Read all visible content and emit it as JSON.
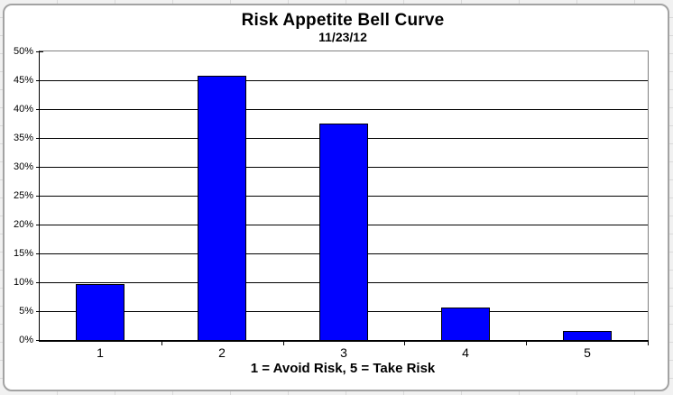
{
  "chart_data": {
    "type": "bar",
    "title": "Risk Appetite Bell Curve",
    "subtitle": "11/23/12",
    "categories": [
      "1",
      "2",
      "3",
      "4",
      "5"
    ],
    "values": [
      9.7,
      45.8,
      37.5,
      5.6,
      1.5
    ],
    "xlabel": "1 = Avoid Risk, 5 = Take Risk",
    "ylabel": "",
    "ylim": [
      0,
      50
    ],
    "ytick_step": 5,
    "ytick_labels": [
      "0%",
      "5%",
      "10%",
      "15%",
      "20%",
      "25%",
      "30%",
      "35%",
      "40%",
      "45%",
      "50%"
    ],
    "grid": true,
    "legend": false,
    "bar_color": "#0000FF",
    "bar_border_color": "#000000",
    "gridline_color": "#000000",
    "plot_border_color": "#808080",
    "axis_color": "#000000",
    "plot_background": "#FFFFFF",
    "chart_background": "#FFFFFF",
    "sheet_background": "#F1F1F1"
  }
}
